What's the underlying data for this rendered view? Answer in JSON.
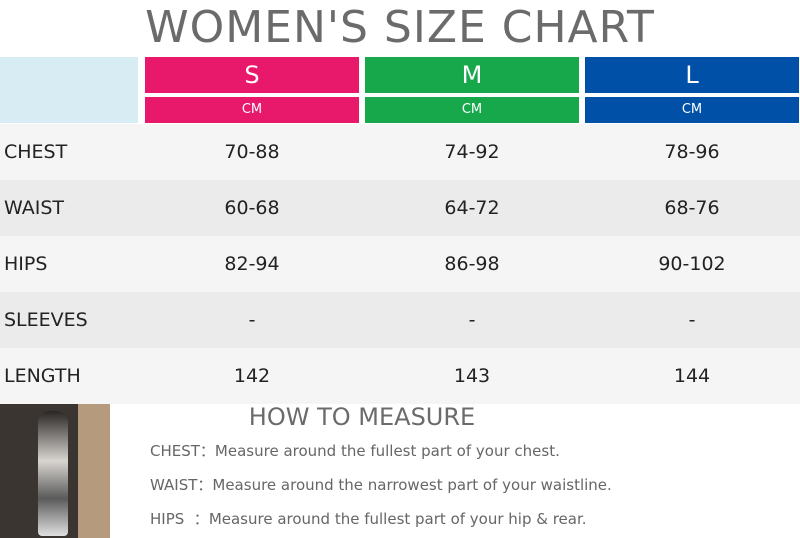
{
  "title": "WOMEN'S SIZE CHART",
  "table": {
    "sizes": [
      {
        "name": "S",
        "unit": "CM"
      },
      {
        "name": "M",
        "unit": "CM"
      },
      {
        "name": "L",
        "unit": "CM"
      }
    ],
    "rows": [
      [
        "CHEST",
        "70-88",
        "74-92",
        "78-96"
      ],
      [
        "WAIST",
        "60-68",
        "64-72",
        "68-76"
      ],
      [
        "HIPS",
        "82-94",
        "86-98",
        "90-102"
      ],
      [
        "SLEEVES",
        "-",
        "-",
        "-"
      ],
      [
        "LENGTH",
        "142",
        "143",
        "144"
      ]
    ]
  },
  "measure": {
    "title": "HOW TO MEASURE",
    "items": [
      {
        "label": "CHEST：",
        "text": "Measure around the fullest part of your chest."
      },
      {
        "label": "WAIST：",
        "text": "Measure around the narrowest part of your waistline."
      },
      {
        "label": "HIPS  ：",
        "text": "Measure around the fullest part of your hip & rear."
      }
    ]
  }
}
